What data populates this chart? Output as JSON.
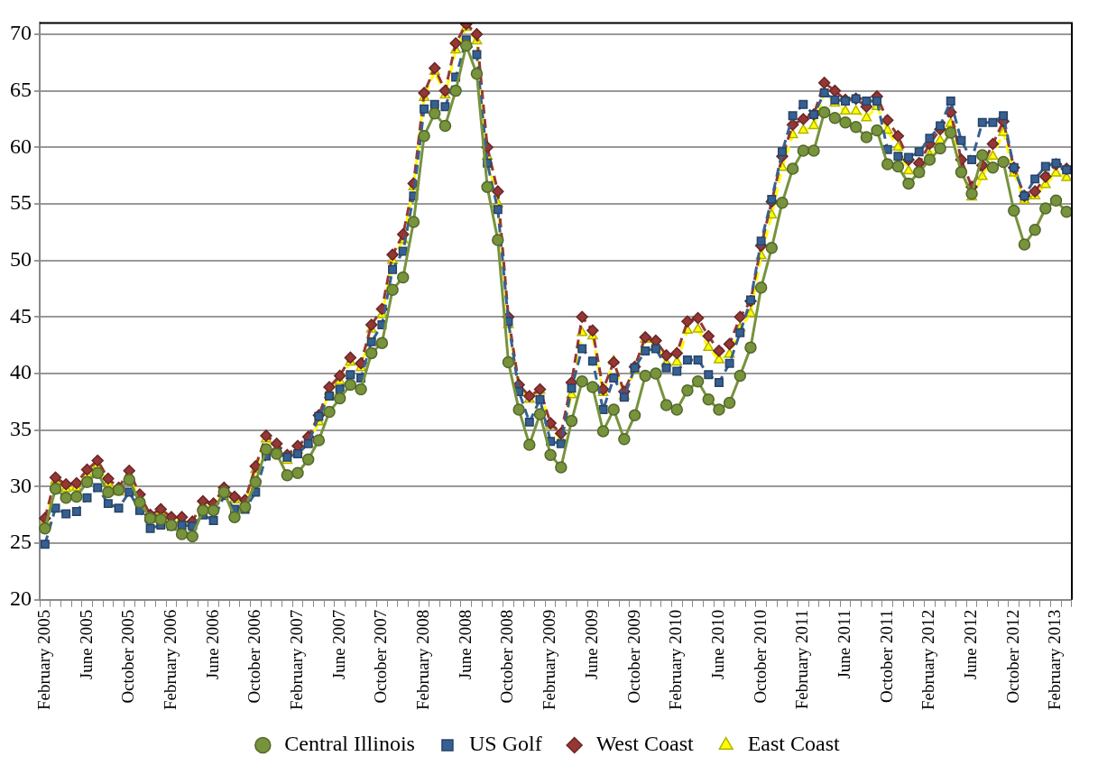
{
  "chart_data": {
    "type": "line",
    "categories": [
      "February 2005",
      null,
      null,
      null,
      "June 2005",
      null,
      null,
      null,
      "October 2005",
      null,
      null,
      null,
      "February 2006",
      null,
      null,
      null,
      "June 2006",
      null,
      null,
      null,
      "October 2006",
      null,
      null,
      null,
      "February 2007",
      null,
      null,
      null,
      "June 2007",
      null,
      null,
      null,
      "October 2007",
      null,
      null,
      null,
      "February 2008",
      null,
      null,
      null,
      "June 2008",
      null,
      null,
      null,
      "October 2008",
      null,
      null,
      null,
      "February 2009",
      null,
      null,
      null,
      "June 2009",
      null,
      null,
      null,
      "October 2009",
      null,
      null,
      null,
      "February 2010",
      null,
      null,
      null,
      "June 2010",
      null,
      null,
      null,
      "October 2010",
      null,
      null,
      null,
      "February 2011",
      null,
      null,
      null,
      "June 2011",
      null,
      null,
      null,
      "October 2011",
      null,
      null,
      null,
      "February 2012",
      null,
      null,
      null,
      "June 2012",
      null,
      null,
      null,
      "October 2012",
      null,
      null,
      null,
      "February 2013",
      null
    ],
    "series": [
      {
        "name": "Central Illinois",
        "color": "#77933c",
        "marker": "circle",
        "line_style": "solid",
        "values": [
          26.3,
          29.8,
          29.0,
          29.1,
          30.4,
          31.2,
          29.5,
          29.7,
          30.6,
          28.6,
          27.2,
          27.1,
          26.6,
          25.8,
          25.6,
          27.9,
          27.9,
          29.5,
          27.3,
          28.2,
          30.4,
          33.3,
          32.9,
          31.0,
          31.2,
          32.4,
          34.1,
          36.6,
          37.8,
          39.0,
          38.6,
          41.8,
          42.7,
          47.4,
          48.5,
          53.4,
          61.0,
          63.0,
          61.9,
          65.0,
          69.0,
          66.5,
          56.5,
          51.8,
          41.0,
          36.8,
          33.7,
          36.4,
          32.8,
          31.7,
          35.8,
          39.3,
          38.8,
          34.9,
          36.8,
          34.2,
          36.3,
          39.8,
          40.0,
          37.2,
          36.8,
          38.5,
          39.3,
          37.7,
          36.8,
          37.4,
          39.8,
          42.3,
          47.6,
          51.1,
          55.1,
          58.1,
          59.7,
          59.7,
          63.1,
          62.6,
          62.2,
          61.8,
          60.9,
          61.5,
          58.5,
          58.3,
          56.8,
          57.8,
          58.9,
          59.9,
          61.3,
          57.8,
          55.9,
          59.3,
          58.2,
          58.7,
          54.4,
          51.4,
          52.7,
          54.6,
          55.3,
          54.3
        ]
      },
      {
        "name": "US Golf",
        "color": "#376092",
        "marker": "square",
        "line_style": "dashed",
        "values": [
          24.9,
          28.1,
          27.6,
          27.8,
          29.0,
          29.9,
          28.5,
          28.1,
          29.5,
          27.9,
          26.3,
          26.6,
          26.5,
          26.6,
          26.5,
          27.5,
          27.0,
          29.2,
          28.0,
          28.0,
          29.5,
          32.7,
          33.0,
          32.6,
          32.9,
          33.8,
          36.2,
          38.0,
          38.6,
          39.9,
          39.6,
          42.8,
          44.3,
          49.2,
          50.8,
          55.7,
          63.4,
          63.8,
          63.6,
          66.2,
          69.5,
          68.2,
          58.6,
          54.5,
          44.6,
          38.4,
          35.7,
          37.7,
          34.0,
          33.8,
          38.7,
          42.2,
          41.1,
          36.8,
          39.6,
          37.9,
          40.5,
          42.0,
          42.2,
          40.5,
          40.2,
          41.2,
          41.2,
          39.9,
          39.2,
          40.9,
          43.6,
          46.5,
          51.7,
          55.4,
          59.6,
          62.8,
          63.8,
          62.9,
          64.8,
          64.2,
          64.1,
          64.3,
          64.1,
          64.1,
          59.8,
          59.2,
          59.1,
          59.6,
          60.8,
          61.9,
          64.1,
          60.6,
          58.9,
          62.2,
          62.2,
          62.8,
          58.2,
          55.7,
          57.2,
          58.3,
          58.6,
          58.0
        ]
      },
      {
        "name": "West Coast",
        "color": "#953735",
        "marker": "diamond",
        "line_style": "dashed",
        "values": [
          27.2,
          30.8,
          30.2,
          30.3,
          31.5,
          32.3,
          30.7,
          29.9,
          31.4,
          29.3,
          27.5,
          28.0,
          27.3,
          27.3,
          26.9,
          28.7,
          28.5,
          29.9,
          29.1,
          28.8,
          31.8,
          34.5,
          33.8,
          32.8,
          33.6,
          34.4,
          36.3,
          38.8,
          39.8,
          41.4,
          40.9,
          44.3,
          45.7,
          50.5,
          52.3,
          56.8,
          64.8,
          67.0,
          65.0,
          69.2,
          70.9,
          70.0,
          60.0,
          56.1,
          45.0,
          39.0,
          38.0,
          38.6,
          35.6,
          34.7,
          39.2,
          45.0,
          43.8,
          38.6,
          41.0,
          38.4,
          40.6,
          43.2,
          42.9,
          41.6,
          41.8,
          44.6,
          44.9,
          43.3,
          42.0,
          42.6,
          45.0,
          46.4,
          51.3,
          55.2,
          59.2,
          62.0,
          62.5,
          62.9,
          65.7,
          65.0,
          64.2,
          64.3,
          63.6,
          64.5,
          62.4,
          61.0,
          58.9,
          58.6,
          60.3,
          61.6,
          63.1,
          58.9,
          56.5,
          58.4,
          60.3,
          62.3,
          58.2,
          55.7,
          56.1,
          57.4,
          58.5,
          58.1
        ]
      },
      {
        "name": "East Coast",
        "color": "#ffff00",
        "marker": "triangle",
        "line_style": "dashed",
        "values": [
          26.9,
          30.5,
          29.8,
          29.9,
          31.1,
          31.9,
          30.3,
          29.5,
          31.0,
          28.9,
          27.1,
          27.7,
          27.0,
          27.0,
          26.6,
          28.3,
          28.2,
          29.5,
          28.8,
          28.5,
          31.5,
          34.2,
          33.4,
          32.3,
          33.2,
          33.8,
          35.7,
          38.4,
          39.3,
          41.0,
          40.5,
          43.9,
          45.2,
          50.0,
          51.8,
          56.5,
          64.4,
          66.7,
          64.6,
          68.6,
          70.6,
          69.4,
          59.2,
          55.0,
          44.3,
          38.8,
          37.7,
          38.5,
          35.4,
          34.1,
          38.1,
          43.6,
          43.3,
          38.3,
          41.1,
          38.0,
          40.3,
          43.0,
          42.6,
          40.9,
          41.0,
          43.8,
          43.9,
          42.3,
          41.2,
          41.7,
          44.0,
          45.3,
          50.4,
          54.0,
          58.2,
          61.1,
          61.5,
          61.9,
          64.8,
          63.9,
          63.2,
          63.2,
          62.6,
          63.6,
          61.5,
          60.0,
          57.9,
          57.7,
          59.3,
          60.6,
          62.1,
          57.9,
          55.6,
          57.4,
          59.2,
          61.3,
          57.7,
          55.3,
          55.7,
          56.7,
          57.7,
          57.3
        ]
      }
    ],
    "ylim": [
      20,
      71
    ],
    "yticks": [
      20,
      25,
      30,
      35,
      40,
      45,
      50,
      55,
      60,
      65,
      70
    ],
    "grid": "y",
    "legend": "bottom"
  }
}
